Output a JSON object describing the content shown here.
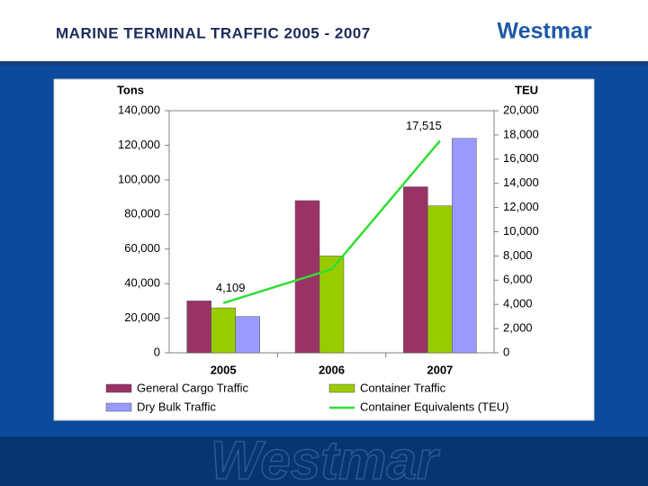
{
  "slide": {
    "title": "MARINE TERMINAL TRAFFIC 2005 - 2007",
    "logo": "Westmar"
  },
  "chart_data": {
    "type": "bar",
    "ylabel": "Tons",
    "y2label": "TEU",
    "categories": [
      "2005",
      "2006",
      "2007"
    ],
    "series": [
      {
        "name": "General Cargo Traffic",
        "color": "#993366",
        "type": "bar",
        "values": [
          30000,
          88000,
          96000
        ]
      },
      {
        "name": "Container Traffic",
        "color": "#99cc00",
        "type": "bar",
        "values": [
          26000,
          56000,
          85000
        ]
      },
      {
        "name": "Dry Bulk Traffic",
        "color": "#9999ff",
        "type": "bar",
        "values": [
          21000,
          null,
          124000
        ]
      },
      {
        "name": "Container Equivalents (TEU)",
        "color": "#33dd33",
        "type": "line",
        "axis": "y2",
        "values": [
          4109,
          6900,
          17515
        ],
        "value_labels": [
          "4,109",
          null,
          "17,515"
        ]
      }
    ],
    "ylim": [
      0,
      140000
    ],
    "yticks": [
      0,
      {
        "value": 20000,
        "label": "20,000"
      },
      {
        "value": 40000,
        "label": "40,000"
      },
      {
        "value": 60000,
        "label": "60,000"
      },
      {
        "value": 80000,
        "label": "80,000"
      },
      {
        "value": 100000,
        "label": "100,000"
      },
      {
        "value": 120000,
        "label": "120,000"
      },
      {
        "value": 140000,
        "label": "140,000"
      }
    ],
    "y2lim": [
      0,
      20000
    ],
    "y2ticks": [
      0,
      {
        "value": 2000,
        "label": "2,000"
      },
      {
        "value": 4000,
        "label": "4,000"
      },
      {
        "value": 6000,
        "label": "6,000"
      },
      {
        "value": 8000,
        "label": "8,000"
      },
      {
        "value": 10000,
        "label": "10,000"
      },
      {
        "value": 12000,
        "label": "12,000"
      },
      {
        "value": 14000,
        "label": "14,000"
      },
      {
        "value": 16000,
        "label": "16,000"
      },
      {
        "value": 18000,
        "label": "18,000"
      },
      {
        "value": 20000,
        "label": "20,000"
      }
    ],
    "grid": false,
    "legend": "bottom"
  }
}
